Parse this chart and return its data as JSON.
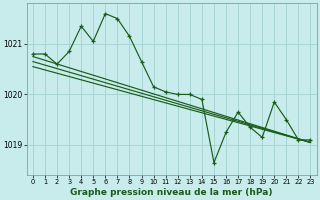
{
  "title": "Graphe pression niveau de la mer (hPa)",
  "bg_color": "#c8ecec",
  "grid_color": "#a8d4d4",
  "line_color": "#1a5c1a",
  "ylim": [
    1018.4,
    1021.8
  ],
  "yticks": [
    1019,
    1020,
    1021
  ],
  "xlim": [
    -0.5,
    23.5
  ],
  "xticks": [
    0,
    1,
    2,
    3,
    4,
    5,
    6,
    7,
    8,
    9,
    10,
    11,
    12,
    13,
    14,
    15,
    16,
    17,
    18,
    19,
    20,
    21,
    22,
    23
  ],
  "series1": [
    1020.8,
    1020.8,
    1020.6,
    1020.85,
    1021.35,
    1021.05,
    1021.6,
    1021.5,
    1021.15,
    1020.65,
    1020.15,
    1020.05,
    1020.0,
    1020.0,
    1019.9,
    1018.65,
    1019.25,
    1019.65,
    1019.35,
    1019.15,
    1019.85,
    1019.5,
    1019.1,
    1019.1
  ],
  "series2_x": [
    0,
    23
  ],
  "series2_y": [
    1020.75,
    1019.05
  ],
  "series3_x": [
    0,
    23
  ],
  "series3_y": [
    1020.65,
    1019.05
  ],
  "series4_x": [
    0,
    23
  ],
  "series4_y": [
    1020.55,
    1019.05
  ],
  "xlabel_fontsize": 6.5
}
